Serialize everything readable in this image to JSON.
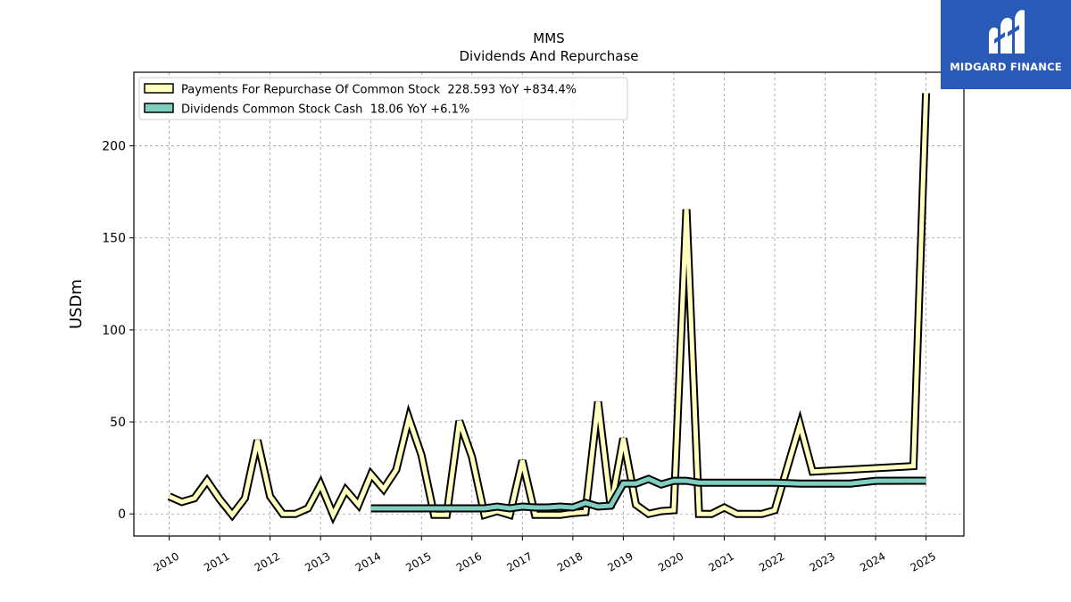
{
  "brand": {
    "name": "MIDGARD FINANCE",
    "bg_color": "#2a5ab8"
  },
  "chart_data": {
    "type": "line",
    "title": "MMS",
    "subtitle": "Dividends And Repurchase",
    "ylabel": "USDm",
    "xlabel": "",
    "ylim": [
      -12,
      240
    ],
    "y_ticks": [
      0,
      50,
      100,
      150,
      200
    ],
    "x_range": [
      2009.3,
      2025.75
    ],
    "x_ticks": [
      "2010",
      "2011",
      "2012",
      "2013",
      "2014",
      "2015",
      "2016",
      "2017",
      "2018",
      "2019",
      "2020",
      "2021",
      "2022",
      "2023",
      "2024",
      "2025"
    ],
    "grid": true,
    "legend_position": "top-left",
    "series": [
      {
        "name": "Payments For Repurchase Of Common Stock",
        "legend_label": "Payments For Repurchase Of Common Stock  228.593 YoY +834.4%",
        "color": "#ffffbf",
        "points": [
          [
            2010.0,
            9.5
          ],
          [
            2010.25,
            6.5
          ],
          [
            2010.5,
            8.5
          ],
          [
            2010.75,
            18.0
          ],
          [
            2011.0,
            8.0
          ],
          [
            2011.25,
            -0.5
          ],
          [
            2011.5,
            8.5
          ],
          [
            2011.75,
            40.0
          ],
          [
            2012.0,
            9.5
          ],
          [
            2012.25,
            0.0
          ],
          [
            2012.5,
            0.0
          ],
          [
            2012.75,
            3.0
          ],
          [
            2013.0,
            16.0
          ],
          [
            2013.25,
            -0.5
          ],
          [
            2013.5,
            13.0
          ],
          [
            2013.75,
            5.0
          ],
          [
            2014.0,
            21.5
          ],
          [
            2014.25,
            13.5
          ],
          [
            2014.5,
            24.0
          ],
          [
            2014.75,
            52.0
          ],
          [
            2015.0,
            32.0
          ],
          [
            2015.25,
            -0.5
          ],
          [
            2015.5,
            -0.5
          ],
          [
            2015.75,
            50.5
          ],
          [
            2016.0,
            31.0
          ],
          [
            2016.25,
            -0.5
          ],
          [
            2016.5,
            1.5
          ],
          [
            2016.75,
            -0.5
          ],
          [
            2017.0,
            29.0
          ],
          [
            2017.25,
            -0.5
          ],
          [
            2017.5,
            -0.5
          ],
          [
            2017.75,
            -0.5
          ],
          [
            2018.0,
            0.5
          ],
          [
            2018.25,
            1.0
          ],
          [
            2018.5,
            61.0
          ],
          [
            2018.75,
            3.5
          ],
          [
            2019.0,
            41.0
          ],
          [
            2019.25,
            5.0
          ],
          [
            2019.5,
            0.0
          ],
          [
            2019.75,
            1.5
          ],
          [
            2020.0,
            2.0
          ],
          [
            2020.25,
            165.5
          ],
          [
            2020.5,
            0.0
          ],
          [
            2020.75,
            0.0
          ],
          [
            2021.0,
            3.5
          ],
          [
            2021.25,
            0.0
          ],
          [
            2021.5,
            0.0
          ],
          [
            2021.75,
            0.0
          ],
          [
            2022.0,
            2.0
          ],
          [
            2022.5,
            48.5
          ],
          [
            2022.75,
            23.0
          ],
          [
            2024.75,
            26.0
          ],
          [
            2025.0,
            228.593
          ]
        ]
      },
      {
        "name": "Dividends Common Stock Cash",
        "legend_label": "Dividends Common Stock Cash  18.06 YoY +6.1%",
        "color": "#80cdc1",
        "points": [
          [
            2014.0,
            3.0
          ],
          [
            2014.5,
            3.0
          ],
          [
            2015.0,
            3.0
          ],
          [
            2015.5,
            3.0
          ],
          [
            2016.0,
            3.0
          ],
          [
            2016.25,
            3.0
          ],
          [
            2016.5,
            4.0
          ],
          [
            2016.75,
            3.0
          ],
          [
            2017.0,
            4.0
          ],
          [
            2017.25,
            3.5
          ],
          [
            2017.5,
            3.5
          ],
          [
            2017.75,
            4.0
          ],
          [
            2018.0,
            3.5
          ],
          [
            2018.25,
            6.0
          ],
          [
            2018.5,
            4.0
          ],
          [
            2018.75,
            4.5
          ],
          [
            2019.0,
            16.5
          ],
          [
            2019.25,
            16.5
          ],
          [
            2019.5,
            19.0
          ],
          [
            2019.75,
            16.0
          ],
          [
            2020.0,
            18.0
          ],
          [
            2020.25,
            18.0
          ],
          [
            2020.5,
            17.0
          ],
          [
            2021.0,
            17.0
          ],
          [
            2022.0,
            17.0
          ],
          [
            2022.5,
            16.5
          ],
          [
            2023.5,
            16.5
          ],
          [
            2024.0,
            18.0
          ],
          [
            2025.0,
            18.06
          ]
        ]
      }
    ]
  }
}
